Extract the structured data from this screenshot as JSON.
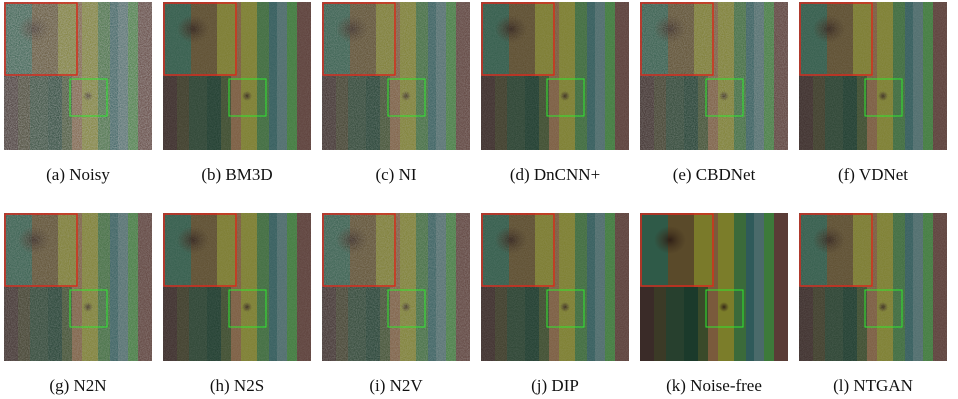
{
  "figures": [
    {
      "caption": "(a)  Noisy",
      "noise": "high"
    },
    {
      "caption": "(b)  BM3D",
      "noise": "low"
    },
    {
      "caption": "(c)  NI",
      "noise": "medium"
    },
    {
      "caption": "(d)  DnCNN+",
      "noise": "low"
    },
    {
      "caption": "(e)  CBDNet",
      "noise": "medium"
    },
    {
      "caption": "(f)  VDNet",
      "noise": "low"
    },
    {
      "caption": "(g)  N2N",
      "noise": "medium"
    },
    {
      "caption": "(h)  N2S",
      "noise": "low"
    },
    {
      "caption": "(i)  N2V",
      "noise": "medium"
    },
    {
      "caption": "(j)  DIP",
      "noise": "low"
    },
    {
      "caption": "(k)  Noise-free",
      "noise": "none"
    },
    {
      "caption": "(l)  NTGAN",
      "noise": "low"
    }
  ],
  "colors": {
    "zoom_box": "#d42a1e",
    "roi_box": "#2ee82e",
    "background": "#ffffff"
  }
}
